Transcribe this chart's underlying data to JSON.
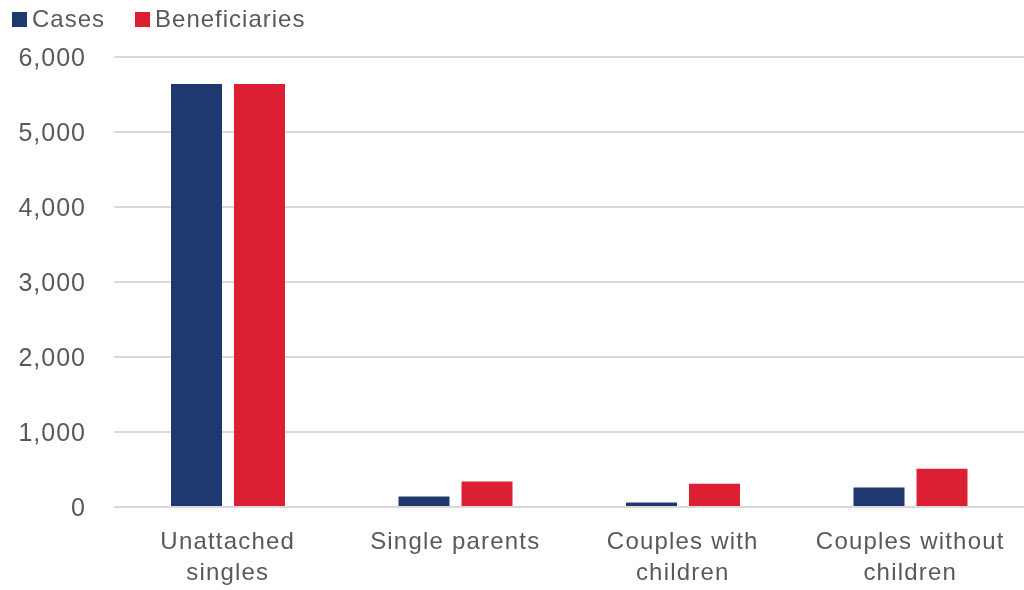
{
  "chart_data": {
    "type": "bar",
    "categories": [
      "Unattached singles",
      "Single parents",
      "Couples with children",
      "Couples without children"
    ],
    "series": [
      {
        "name": "Cases",
        "color": "#203870",
        "values": [
          5640,
          140,
          60,
          260
        ]
      },
      {
        "name": "Beneficiaries",
        "color": "#dc1f33",
        "values": [
          5640,
          340,
          310,
          510
        ]
      }
    ],
    "ylim": [
      0,
      6000
    ],
    "yticks": [
      {
        "value": 0,
        "label": "0"
      },
      {
        "value": 1000,
        "label": "1,000"
      },
      {
        "value": 2000,
        "label": "2,000"
      },
      {
        "value": 3000,
        "label": "3,000"
      },
      {
        "value": 4000,
        "label": "4,000"
      },
      {
        "value": 5000,
        "label": "5,000"
      },
      {
        "value": 6000,
        "label": "6,000"
      }
    ],
    "grid": "y",
    "legend": "top left"
  }
}
